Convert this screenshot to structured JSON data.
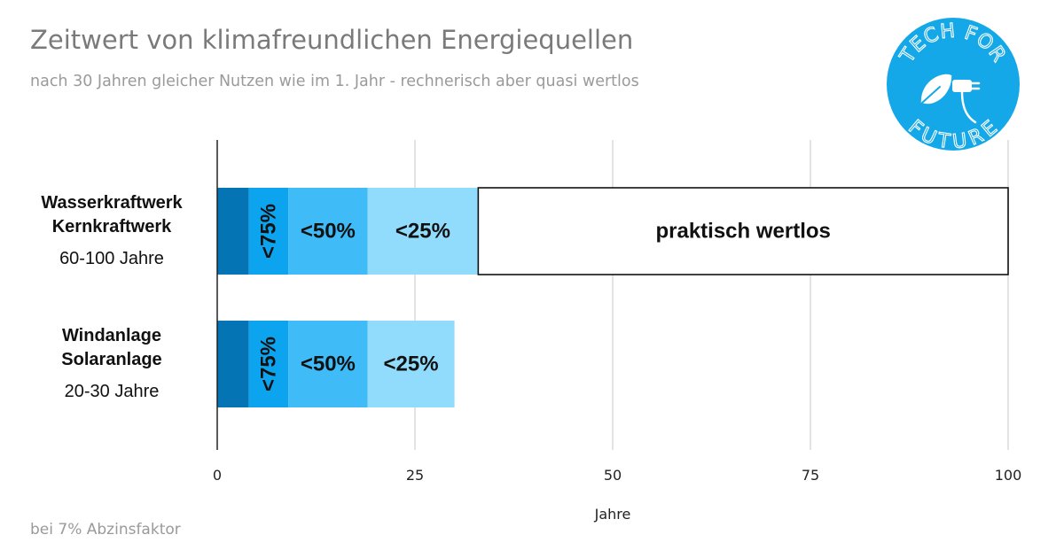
{
  "title": "Zeitwert von klimafreundlichen Energiequellen",
  "subtitle": "nach 30 Jahren gleicher Nutzen wie im 1. Jahr - rechnerisch aber quasi wertlos",
  "footnote": "bei 7% Abzinsfaktor",
  "logo": {
    "text_top": "TECH FOR",
    "text_bottom": "FUTURE",
    "color": "#14a8e8",
    "icon": "plug-leaf-icon"
  },
  "colors": {
    "seg_100": "#0474b4",
    "seg_75": "#0ca4ee",
    "seg_50": "#3fbbf8",
    "seg_25": "#91dcfc",
    "seg_worthless": "#ffffff",
    "grid": "#d0d0d0",
    "axis": "#222222"
  },
  "chart_data": {
    "type": "bar",
    "orientation": "horizontal",
    "stacked": true,
    "xlabel": "Jahre",
    "xlim": [
      0,
      100
    ],
    "xticks": [
      0,
      25,
      50,
      75,
      100
    ],
    "grid": true,
    "categories": [
      {
        "name": [
          "Wasserkraftwerk",
          "Kernkraftwerk"
        ],
        "sub": "60-100 Jahre"
      },
      {
        "name": [
          "Windanlage",
          "Solaranlage"
        ],
        "sub": "20-30 Jahre"
      }
    ],
    "series": [
      {
        "label": "",
        "color_key": "seg_100",
        "values": [
          4,
          4
        ]
      },
      {
        "label": "<75%",
        "color_key": "seg_75",
        "values": [
          5,
          5
        ],
        "rotated": true
      },
      {
        "label": "<50%",
        "color_key": "seg_50",
        "values": [
          10,
          10
        ]
      },
      {
        "label": "<25%",
        "color_key": "seg_25",
        "values": [
          14,
          11
        ]
      },
      {
        "label": "praktisch wertlos",
        "color_key": "seg_worthless",
        "values": [
          67,
          0
        ],
        "outlined": true
      }
    ]
  }
}
